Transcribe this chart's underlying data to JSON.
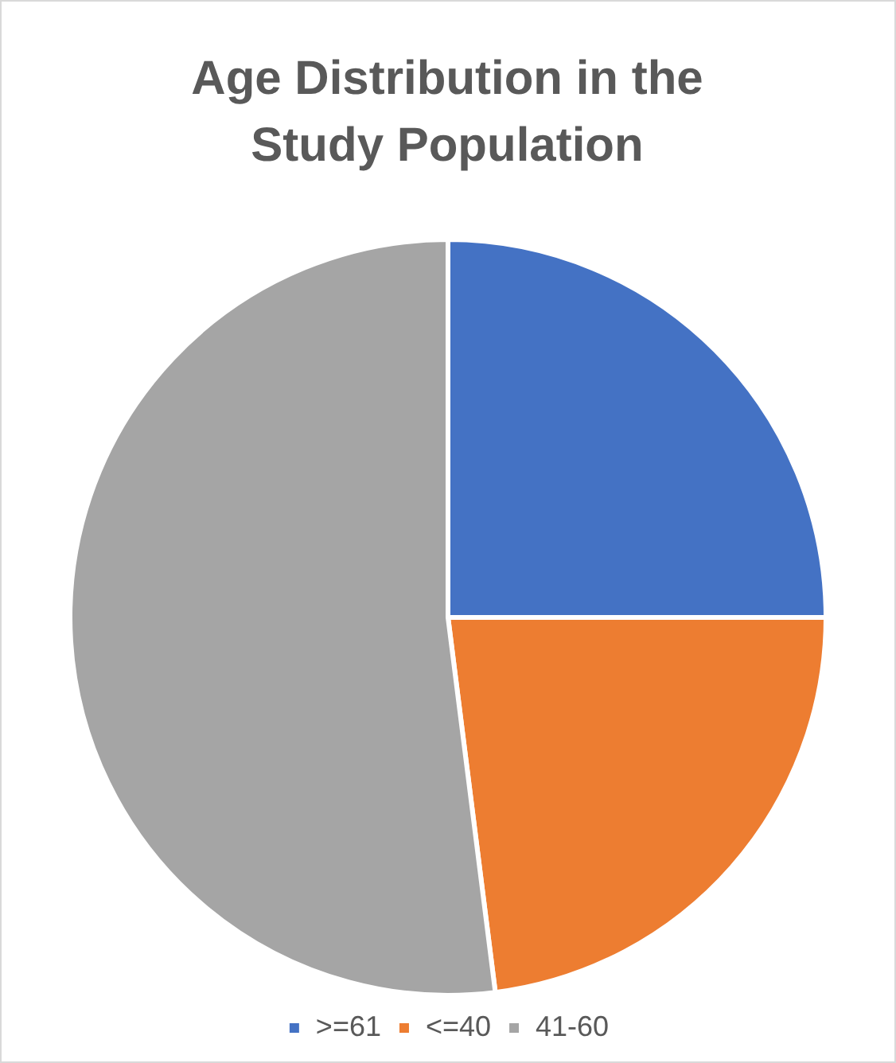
{
  "chart_data": {
    "type": "pie",
    "title": "Age Distribution in the Study Population",
    "categories": [
      ">=61",
      "<=40",
      "41-60"
    ],
    "values": [
      25,
      23,
      52
    ],
    "colors": [
      "#4472c4",
      "#ed7d31",
      "#a5a5a5"
    ],
    "legend": "bottom"
  }
}
